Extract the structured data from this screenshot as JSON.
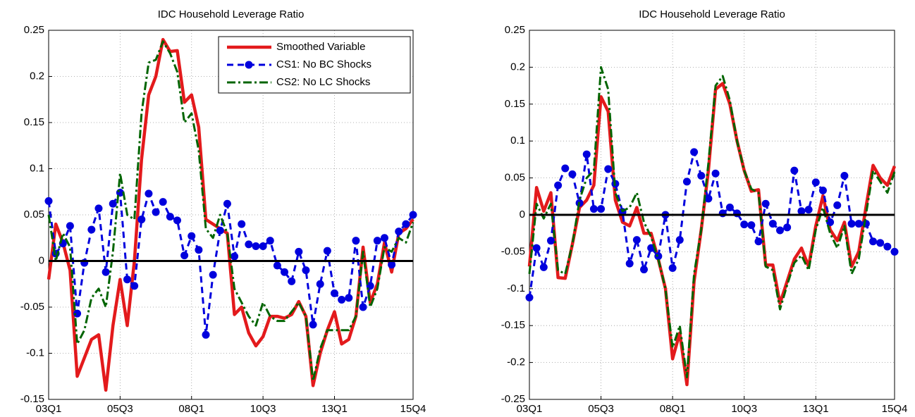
{
  "chart_data": [
    {
      "type": "line",
      "title": "IDC Household Leverage Ratio",
      "categories": [
        "03Q1",
        null,
        null,
        null,
        null,
        null,
        null,
        null,
        null,
        null,
        "05Q3",
        null,
        null,
        null,
        null,
        null,
        null,
        null,
        null,
        null,
        "08Q1",
        null,
        null,
        null,
        null,
        null,
        null,
        null,
        null,
        null,
        "10Q3",
        null,
        null,
        null,
        null,
        null,
        null,
        null,
        null,
        null,
        "13Q1",
        null,
        null,
        null,
        null,
        null,
        null,
        null,
        null,
        null,
        null,
        "15Q4"
      ],
      "ylim": [
        -0.15,
        0.25
      ],
      "yticks": [
        -0.15,
        -0.1,
        -0.05,
        0,
        0.05,
        0.1,
        0.15,
        0.2,
        0.25
      ],
      "grid": true,
      "hline": 0,
      "legend": "northeast",
      "series": [
        {
          "name": "Smoothed Variable",
          "color": "#e31a1c",
          "style": "solid",
          "values": [
            -0.02,
            0.04,
            0.02,
            -0.01,
            -0.125,
            -0.105,
            -0.085,
            -0.08,
            -0.14,
            -0.07,
            -0.02,
            -0.07,
            0.0,
            0.11,
            0.18,
            0.2,
            0.24,
            0.227,
            0.228,
            0.172,
            0.18,
            0.145,
            0.045,
            0.04,
            0.035,
            0.03,
            -0.058,
            -0.05,
            -0.078,
            -0.092,
            -0.082,
            -0.06,
            -0.06,
            -0.062,
            -0.058,
            -0.044,
            -0.06,
            -0.135,
            -0.1,
            -0.075,
            -0.055,
            -0.09,
            -0.085,
            -0.06,
            0.015,
            -0.045,
            -0.025,
            0.02,
            -0.012,
            0.03,
            0.035,
            0.045
          ]
        },
        {
          "name": "CS1: No BC Shocks",
          "color": "#0000dd",
          "style": "dashed-dot-marker",
          "values": [
            0.065,
            0.008,
            0.019,
            0.038,
            -0.057,
            -0.002,
            0.034,
            0.057,
            -0.012,
            0.062,
            0.074,
            -0.02,
            -0.027,
            0.045,
            0.073,
            0.053,
            0.064,
            0.048,
            0.044,
            0.006,
            0.027,
            0.012,
            -0.08,
            -0.015,
            0.033,
            0.062,
            0.005,
            0.04,
            0.018,
            0.016,
            0.016,
            0.022,
            -0.005,
            -0.012,
            -0.022,
            0.01,
            -0.01,
            -0.069,
            -0.025,
            0.011,
            -0.035,
            -0.042,
            -0.04,
            0.022,
            -0.05,
            -0.027,
            0.022,
            0.025,
            -0.004,
            0.032,
            0.04,
            0.05
          ]
        },
        {
          "name": "CS2: No LC Shocks",
          "color": "#006400",
          "style": "dashdot",
          "values": [
            0.05,
            0.0,
            0.03,
            0.015,
            -0.09,
            -0.075,
            -0.04,
            -0.03,
            -0.05,
            0.01,
            0.095,
            0.05,
            0.045,
            0.16,
            0.215,
            0.218,
            0.238,
            0.225,
            0.205,
            0.15,
            0.16,
            0.12,
            0.035,
            0.025,
            0.05,
            0.03,
            -0.03,
            -0.045,
            -0.06,
            -0.07,
            -0.045,
            -0.06,
            -0.065,
            -0.065,
            -0.055,
            -0.045,
            -0.06,
            -0.13,
            -0.095,
            -0.075,
            -0.075,
            -0.075,
            -0.075,
            -0.06,
            0.01,
            -0.05,
            -0.03,
            0.015,
            0.01,
            0.025,
            0.02,
            0.042
          ]
        }
      ]
    },
    {
      "type": "line",
      "title": "IDC Household Leverage Ratio",
      "categories": [
        "03Q1",
        null,
        null,
        null,
        null,
        null,
        null,
        null,
        null,
        null,
        "05Q3",
        null,
        null,
        null,
        null,
        null,
        null,
        null,
        null,
        null,
        "08Q1",
        null,
        null,
        null,
        null,
        null,
        null,
        null,
        null,
        null,
        "10Q3",
        null,
        null,
        null,
        null,
        null,
        null,
        null,
        null,
        null,
        "13Q1",
        null,
        null,
        null,
        null,
        null,
        null,
        null,
        null,
        null,
        null,
        "15Q4"
      ],
      "ylim": [
        -0.25,
        0.25
      ],
      "yticks": [
        -0.25,
        -0.2,
        -0.15,
        -0.1,
        -0.05,
        0,
        0.05,
        0.1,
        0.15,
        0.2,
        0.25
      ],
      "grid": true,
      "hline": 0,
      "series": [
        {
          "color": "#e31a1c",
          "style": "solid",
          "values": [
            -0.07,
            0.037,
            0.005,
            0.03,
            -0.085,
            -0.086,
            -0.04,
            0.01,
            0.02,
            0.04,
            0.16,
            0.14,
            0.02,
            -0.01,
            -0.015,
            0.01,
            -0.025,
            -0.025,
            -0.06,
            -0.1,
            -0.195,
            -0.16,
            -0.23,
            -0.09,
            -0.02,
            0.06,
            0.17,
            0.178,
            0.15,
            0.1,
            0.06,
            0.032,
            0.034,
            -0.068,
            -0.068,
            -0.12,
            -0.09,
            -0.06,
            -0.045,
            -0.07,
            -0.015,
            0.026,
            -0.02,
            -0.035,
            -0.01,
            -0.07,
            -0.05,
            0.01,
            0.067,
            0.05,
            0.04,
            0.066
          ]
        },
        {
          "color": "#0000dd",
          "style": "dashed-dot-marker",
          "values": [
            -0.112,
            -0.045,
            -0.071,
            -0.035,
            0.04,
            0.063,
            0.055,
            0.016,
            0.082,
            0.008,
            0.008,
            0.062,
            0.042,
            0.004,
            -0.066,
            -0.034,
            -0.074,
            -0.045,
            -0.056,
            0.0,
            -0.072,
            -0.034,
            0.045,
            0.085,
            0.053,
            0.022,
            0.056,
            0.002,
            0.01,
            0.002,
            -0.013,
            -0.014,
            -0.036,
            0.015,
            -0.012,
            -0.021,
            -0.017,
            0.06,
            0.005,
            0.007,
            0.044,
            0.033,
            -0.01,
            0.013,
            0.053,
            -0.012,
            -0.012,
            -0.012,
            -0.036,
            -0.038,
            -0.043,
            -0.05
          ]
        },
        {
          "color": "#006400",
          "style": "dashdot",
          "values": [
            -0.08,
            0.015,
            -0.005,
            0.015,
            -0.075,
            -0.08,
            -0.04,
            0.02,
            0.05,
            0.06,
            0.2,
            0.17,
            0.03,
            0.005,
            0.01,
            0.03,
            -0.01,
            -0.03,
            -0.06,
            -0.1,
            -0.18,
            -0.15,
            -0.22,
            -0.08,
            -0.02,
            0.07,
            0.175,
            0.188,
            0.155,
            0.1,
            0.06,
            0.035,
            0.03,
            -0.07,
            -0.075,
            -0.128,
            -0.095,
            -0.065,
            -0.055,
            -0.075,
            -0.02,
            0.01,
            -0.025,
            -0.045,
            -0.015,
            -0.08,
            -0.06,
            0.0,
            0.06,
            0.045,
            0.03,
            0.058
          ]
        }
      ]
    }
  ]
}
